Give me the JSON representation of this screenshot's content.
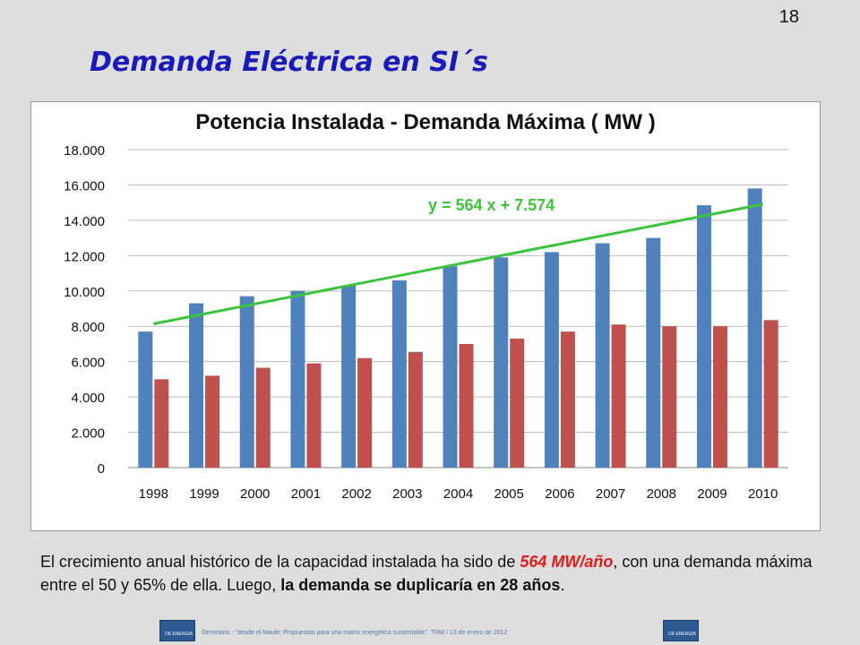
{
  "slide": {
    "number": "18",
    "title": "Demanda Eléctrica en SI´s"
  },
  "chart_data": {
    "type": "bar",
    "title": "Potencia Instalada - Demanda Máxima ( MW )",
    "categories": [
      "1998",
      "1999",
      "2000",
      "2001",
      "2002",
      "2003",
      "2004",
      "2005",
      "2006",
      "2007",
      "2008",
      "2009",
      "2010"
    ],
    "series": [
      {
        "values": [
          7700,
          9300,
          9700,
          10000,
          10300,
          10600,
          11400,
          11900,
          12200,
          12700,
          13000,
          14850,
          15800
        ],
        "color": "#4f81bd"
      },
      {
        "values": [
          5000,
          5200,
          5650,
          5900,
          6200,
          6550,
          7000,
          7300,
          7700,
          8100,
          8000,
          8000,
          8350
        ],
        "color": "#c0504d"
      }
    ],
    "trendline": {
      "label": "y = 564 x + 7.574",
      "color": "#3cc43c",
      "slope": 564,
      "intercept": 7574
    },
    "ylim": [
      0,
      18000
    ],
    "yticks": [
      "0",
      "2.000",
      "4.000",
      "6.000",
      "8.000",
      "10.000",
      "12.000",
      "14.000",
      "16.000",
      "18.000"
    ],
    "xlabel": "",
    "ylabel": "",
    "grid": true
  },
  "body": {
    "part1": "El crecimiento anual histórico de la capacidad instalada ha sido de ",
    "highlight": "564 MW/año",
    "part2": ", con una demanda máxima entre el 50 y 65% de ella. Luego, ",
    "bold": "la demanda se duplicaría en 28 años",
    "part3": "."
  },
  "footer": {
    "text": "Seminario : \"desde el Maule: Propuestas para una matriz energética sustentable\".  TRM  /  13 de enero de 2012",
    "logo_text": "DE ENERGIA"
  }
}
